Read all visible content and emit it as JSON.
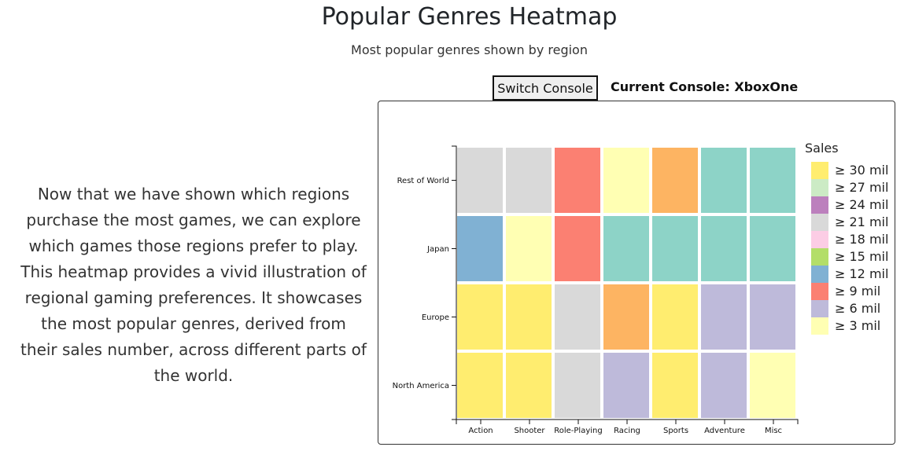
{
  "header": {
    "title": "Popular Genres Heatmap",
    "subtitle": "Most popular genres shown by region"
  },
  "controls": {
    "switch_label": "Switch Console",
    "current_console": "Current Console: XboxOne"
  },
  "description": "Now that we have shown which regions purchase the most games, we can explore which games those regions prefer to play. This heatmap provides a vivid illustration of regional gaming preferences. It showcases the most popular genres, derived from their sales number, across different parts of the world.",
  "chart_data": {
    "type": "heatmap",
    "x_categories": [
      "Action",
      "Shooter",
      "Role-Playing",
      "Racing",
      "Sports",
      "Adventure",
      "Misc"
    ],
    "y_categories": [
      "Rest of World",
      "Japan",
      "Europe",
      "North America"
    ],
    "legend_title": "Sales",
    "legend": [
      {
        "label": "≥ 30 mil",
        "threshold": 30,
        "color": "#ffed6f"
      },
      {
        "label": "≥ 27 mil",
        "threshold": 27,
        "color": "#ccebc5"
      },
      {
        "label": "≥ 24 mil",
        "threshold": 24,
        "color": "#bc80bd"
      },
      {
        "label": "≥ 21 mil",
        "threshold": 21,
        "color": "#d9d9d9"
      },
      {
        "label": "≥ 18 mil",
        "threshold": 18,
        "color": "#fccde5"
      },
      {
        "label": "≥ 15 mil",
        "threshold": 15,
        "color": "#b3de69"
      },
      {
        "label": "≥ 12 mil",
        "threshold": 12,
        "color": "#80b1d3"
      },
      {
        "label": "≥ 9 mil",
        "threshold": 9,
        "color": "#fb8072"
      },
      {
        "label": "≥ 6 mil",
        "threshold": 6,
        "color": "#bebada"
      },
      {
        "label": "≥ 3 mil",
        "threshold": 3,
        "color": "#ffffb3"
      }
    ],
    "extra_colors": {
      "orange": "#fdb462",
      "teal": "#8dd3c7"
    },
    "cells": [
      [
        "#d9d9d9",
        "#d9d9d9",
        "#fb8072",
        "#ffffb3",
        "#fdb462",
        "#8dd3c7",
        "#8dd3c7"
      ],
      [
        "#80b1d3",
        "#ffffb3",
        "#fb8072",
        "#8dd3c7",
        "#8dd3c7",
        "#8dd3c7",
        "#8dd3c7"
      ],
      [
        "#ffed6f",
        "#ffed6f",
        "#d9d9d9",
        "#fdb462",
        "#ffed6f",
        "#bebada",
        "#bebada"
      ],
      [
        "#ffed6f",
        "#ffed6f",
        "#d9d9d9",
        "#bebada",
        "#ffed6f",
        "#bebada",
        "#ffffb3"
      ]
    ]
  }
}
